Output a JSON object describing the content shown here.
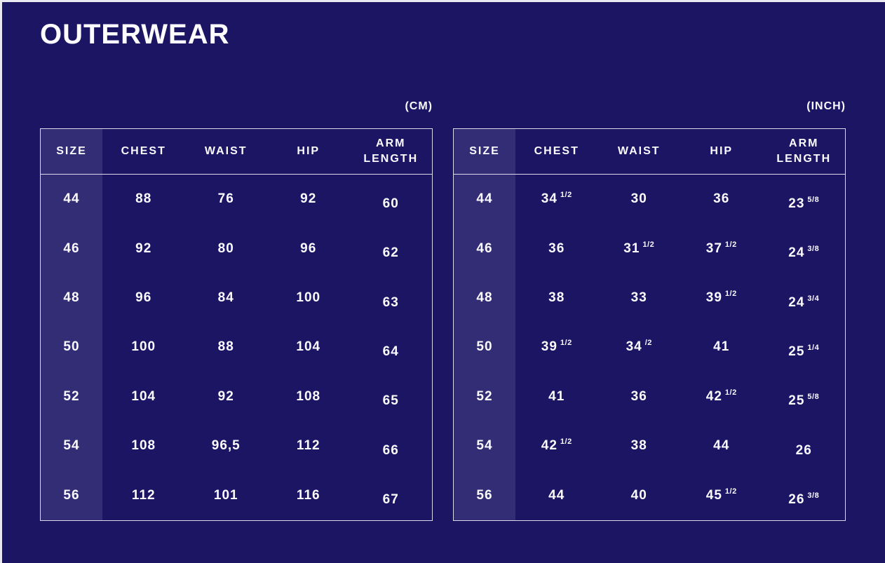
{
  "page": {
    "title": "OUTERWEAR",
    "background_color": "#1c1564",
    "size_band_color": "#332d76",
    "border_color": "#dcd9ec",
    "text_color": "#fbfafe"
  },
  "tables": [
    {
      "id": "cm",
      "unit_label": "(CM)",
      "columns": [
        {
          "key": "size",
          "label": "SIZE"
        },
        {
          "key": "chest",
          "label": "CHEST"
        },
        {
          "key": "waist",
          "label": "WAIST"
        },
        {
          "key": "hip",
          "label": "HIP"
        },
        {
          "key": "arm-length",
          "label": "ARM LENGTH"
        }
      ],
      "rows": [
        {
          "size": "44",
          "cells": [
            {
              "v": "88"
            },
            {
              "v": "76"
            },
            {
              "v": "92"
            },
            {
              "v": "60"
            }
          ]
        },
        {
          "size": "46",
          "cells": [
            {
              "v": "92"
            },
            {
              "v": "80"
            },
            {
              "v": "96"
            },
            {
              "v": "62"
            }
          ]
        },
        {
          "size": "48",
          "cells": [
            {
              "v": "96"
            },
            {
              "v": "84"
            },
            {
              "v": "100"
            },
            {
              "v": "63"
            }
          ]
        },
        {
          "size": "50",
          "cells": [
            {
              "v": "100"
            },
            {
              "v": "88"
            },
            {
              "v": "104"
            },
            {
              "v": "64"
            }
          ]
        },
        {
          "size": "52",
          "cells": [
            {
              "v": "104"
            },
            {
              "v": "92"
            },
            {
              "v": "108"
            },
            {
              "v": "65"
            }
          ]
        },
        {
          "size": "54",
          "cells": [
            {
              "v": "108"
            },
            {
              "v": "96,5"
            },
            {
              "v": "112"
            },
            {
              "v": "66"
            }
          ]
        },
        {
          "size": "56",
          "cells": [
            {
              "v": "112"
            },
            {
              "v": "101"
            },
            {
              "v": "116"
            },
            {
              "v": "67"
            }
          ]
        }
      ]
    },
    {
      "id": "inch",
      "unit_label": "(INCH)",
      "columns": [
        {
          "key": "size",
          "label": "SIZE"
        },
        {
          "key": "chest",
          "label": "CHEST"
        },
        {
          "key": "waist",
          "label": "WAIST"
        },
        {
          "key": "hip",
          "label": "HIP"
        },
        {
          "key": "arm-length",
          "label": "ARM LENGTH"
        }
      ],
      "rows": [
        {
          "size": "44",
          "cells": [
            {
              "v": "34",
              "f": "1/2"
            },
            {
              "v": "30"
            },
            {
              "v": "36"
            },
            {
              "v": "23",
              "f": "5/8"
            }
          ]
        },
        {
          "size": "46",
          "cells": [
            {
              "v": "36"
            },
            {
              "v": "31",
              "f": "1/2"
            },
            {
              "v": "37",
              "f": "1/2"
            },
            {
              "v": "24",
              "f": "3/8"
            }
          ]
        },
        {
          "size": "48",
          "cells": [
            {
              "v": "38"
            },
            {
              "v": "33"
            },
            {
              "v": "39",
              "f": "1/2"
            },
            {
              "v": "24",
              "f": "3/4"
            }
          ]
        },
        {
          "size": "50",
          "cells": [
            {
              "v": "39",
              "f": "1/2"
            },
            {
              "v": "34",
              "f": "/2"
            },
            {
              "v": "41"
            },
            {
              "v": "25",
              "f": "1/4"
            }
          ]
        },
        {
          "size": "52",
          "cells": [
            {
              "v": "41"
            },
            {
              "v": "36"
            },
            {
              "v": "42",
              "f": "1/2"
            },
            {
              "v": "25",
              "f": "5/8"
            }
          ]
        },
        {
          "size": "54",
          "cells": [
            {
              "v": "42",
              "f": "1/2"
            },
            {
              "v": "38"
            },
            {
              "v": "44"
            },
            {
              "v": "26"
            }
          ]
        },
        {
          "size": "56",
          "cells": [
            {
              "v": "44"
            },
            {
              "v": "40"
            },
            {
              "v": "45",
              "f": "1/2"
            },
            {
              "v": "26",
              "f": "3/8"
            }
          ]
        }
      ]
    }
  ]
}
